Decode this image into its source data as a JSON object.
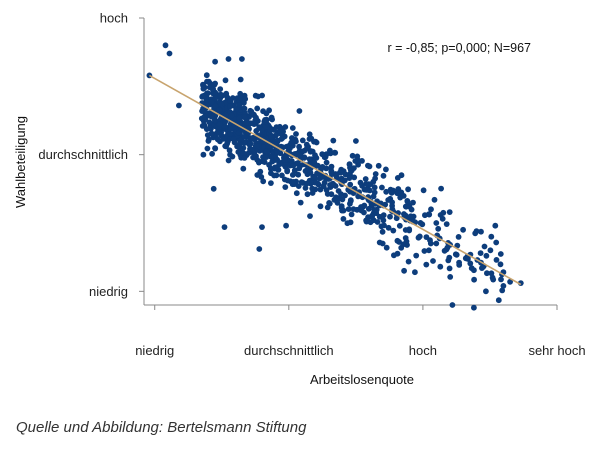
{
  "chart_data": {
    "type": "scatter",
    "title": "",
    "xlabel": "Arbeitslosenquote",
    "ylabel": "Wahlbeteiligung",
    "x_ticks": [
      {
        "value": 0,
        "label": "niedrig"
      },
      {
        "value": 1,
        "label": "durchschnittlich"
      },
      {
        "value": 2,
        "label": "hoch"
      },
      {
        "value": 3,
        "label": "sehr hoch"
      }
    ],
    "y_ticks": [
      {
        "value": 0,
        "label": "niedrig"
      },
      {
        "value": 1,
        "label": "durchschnittlich"
      },
      {
        "value": 2,
        "label": "hoch"
      }
    ],
    "xlim": [
      -0.08,
      3.0
    ],
    "ylim": [
      -0.1,
      2.0
    ],
    "annotation": "r = -0,85; p=0,000; N=967",
    "n": 967,
    "trendline": {
      "x": [
        -0.04,
        2.73
      ],
      "y": [
        1.58,
        0.05
      ]
    },
    "highlight_points": [
      {
        "x": -0.04,
        "y": 1.58
      },
      {
        "x": 0.08,
        "y": 1.8
      },
      {
        "x": 0.11,
        "y": 1.74
      },
      {
        "x": 0.45,
        "y": 1.68
      },
      {
        "x": 0.55,
        "y": 1.7
      },
      {
        "x": 0.65,
        "y": 1.7
      },
      {
        "x": 0.18,
        "y": 1.36
      },
      {
        "x": 0.5,
        "y": 1.24
      },
      {
        "x": 0.4,
        "y": 1.1
      },
      {
        "x": 0.54,
        "y": 1.08
      },
      {
        "x": 0.52,
        "y": 0.47
      },
      {
        "x": 0.8,
        "y": 0.47
      },
      {
        "x": 0.98,
        "y": 0.48
      },
      {
        "x": 0.78,
        "y": 0.31
      },
      {
        "x": 0.44,
        "y": 0.75
      },
      {
        "x": 1.5,
        "y": 1.1
      },
      {
        "x": 1.59,
        "y": 0.92
      },
      {
        "x": 1.84,
        "y": 0.85
      },
      {
        "x": 1.9,
        "y": 0.62
      },
      {
        "x": 2.06,
        "y": 0.6
      },
      {
        "x": 2.1,
        "y": 0.5
      },
      {
        "x": 2.2,
        "y": 0.58
      },
      {
        "x": 2.3,
        "y": 0.45
      },
      {
        "x": 2.4,
        "y": 0.44
      },
      {
        "x": 2.54,
        "y": 0.48
      },
      {
        "x": 2.51,
        "y": 0.4
      },
      {
        "x": 2.27,
        "y": 0.21
      },
      {
        "x": 2.43,
        "y": 0.28
      },
      {
        "x": 1.86,
        "y": 0.15
      },
      {
        "x": 1.94,
        "y": 0.14
      },
      {
        "x": 2.13,
        "y": 0.18
      },
      {
        "x": 2.44,
        "y": 0.17
      },
      {
        "x": 2.52,
        "y": 0.1
      },
      {
        "x": 2.6,
        "y": 0.14
      },
      {
        "x": 2.47,
        "y": 0.0
      },
      {
        "x": 2.6,
        "y": 0.04
      },
      {
        "x": 2.65,
        "y": 0.07
      },
      {
        "x": 2.73,
        "y": 0.06
      },
      {
        "x": 2.22,
        "y": -0.1
      },
      {
        "x": 2.38,
        "y": -0.12
      },
      {
        "x": 2.1,
        "y": 0.35
      },
      {
        "x": 1.7,
        "y": 0.35
      }
    ],
    "colors": {
      "points": "#0d3d7c",
      "trendline": "#c8a46e",
      "axis": "#888888"
    },
    "grid": false,
    "background": "#ffffff"
  },
  "caption": "Quelle und Abbildung: Bertelsmann Stiftung"
}
